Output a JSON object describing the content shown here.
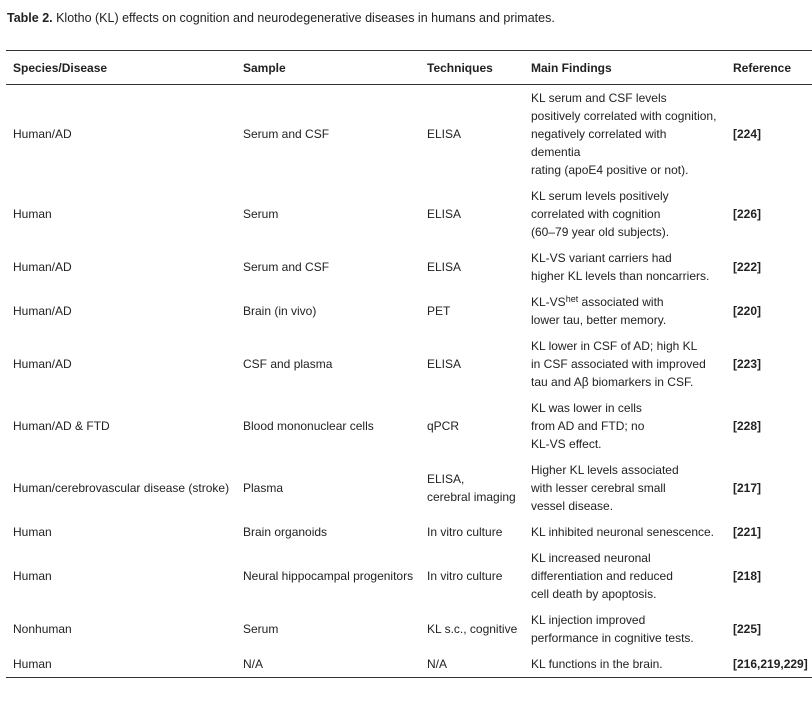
{
  "caption": {
    "label": "Table 2.",
    "text": " Klotho (KL) effects on cognition and neurodegenerative diseases in humans and primates."
  },
  "headers": {
    "species": "Species/Disease",
    "sample": "Sample",
    "techniques": "Techniques",
    "findings": "Main Findings",
    "reference": "Reference"
  },
  "rows": [
    {
      "species": "Human/AD",
      "sample": "Serum and CSF",
      "techniques": [
        "ELISA"
      ],
      "findings": [
        "KL serum and CSF levels",
        "positively correlated with cognition,",
        "negatively correlated with",
        "dementia",
        "rating (apoE4 positive or not)."
      ],
      "reference": "[224]"
    },
    {
      "species": "Human",
      "sample": "Serum",
      "techniques": [
        "ELISA"
      ],
      "findings": [
        "KL serum levels positively",
        "correlated with cognition",
        "(60–79 year old subjects)."
      ],
      "reference": "[226]"
    },
    {
      "species": "Human/AD",
      "sample": "Serum and CSF",
      "techniques": [
        "ELISA"
      ],
      "findings": [
        "KL-VS variant carriers had",
        "higher KL levels than noncarriers."
      ],
      "reference": "[222]"
    },
    {
      "species": "Human/AD",
      "sample": "Brain (in vivo)",
      "techniques": [
        "PET"
      ],
      "findings_sup": {
        "pre": "KL-VS",
        "sup": "het",
        "post": " associated with"
      },
      "findings": [
        "lower tau, better memory."
      ],
      "reference": "[220]"
    },
    {
      "species": "Human/AD",
      "sample": "CSF and plasma",
      "techniques": [
        "ELISA"
      ],
      "findings": [
        "KL lower in CSF of AD; high KL",
        "in CSF associated with improved",
        "tau and Aβ biomarkers in CSF."
      ],
      "reference": "[223]"
    },
    {
      "species": "Human/AD & FTD",
      "sample": "Blood mononuclear cells",
      "techniques": [
        "qPCR"
      ],
      "findings": [
        "KL was lower in cells",
        "from AD and FTD; no",
        "KL-VS effect."
      ],
      "reference": "[228]"
    },
    {
      "species": "Human/cerebrovascular disease (stroke)",
      "sample": "Plasma",
      "techniques": [
        "ELISA,",
        "cerebral imaging"
      ],
      "findings": [
        "Higher KL levels associated",
        "with lesser cerebral small",
        "vessel disease."
      ],
      "reference": "[217]"
    },
    {
      "species": "Human",
      "sample": "Brain organoids",
      "techniques": [
        "In vitro culture"
      ],
      "findings": [
        "KL inhibited neuronal senescence."
      ],
      "reference": "[221]"
    },
    {
      "species": "Human",
      "sample": "Neural hippocampal progenitors",
      "techniques": [
        "In vitro culture"
      ],
      "findings": [
        "KL increased neuronal",
        "differentiation and reduced",
        "cell death by apoptosis."
      ],
      "reference": "[218]"
    },
    {
      "species": "Nonhuman",
      "sample": "Serum",
      "techniques": [
        "KL s.c., cognitive"
      ],
      "findings": [
        "KL injection improved",
        "performance in cognitive tests."
      ],
      "reference": "[225]"
    },
    {
      "species": "Human",
      "sample": "N/A",
      "techniques": [
        "N/A"
      ],
      "findings": [
        "KL functions in the brain."
      ],
      "reference": "[216,219,229]"
    }
  ]
}
